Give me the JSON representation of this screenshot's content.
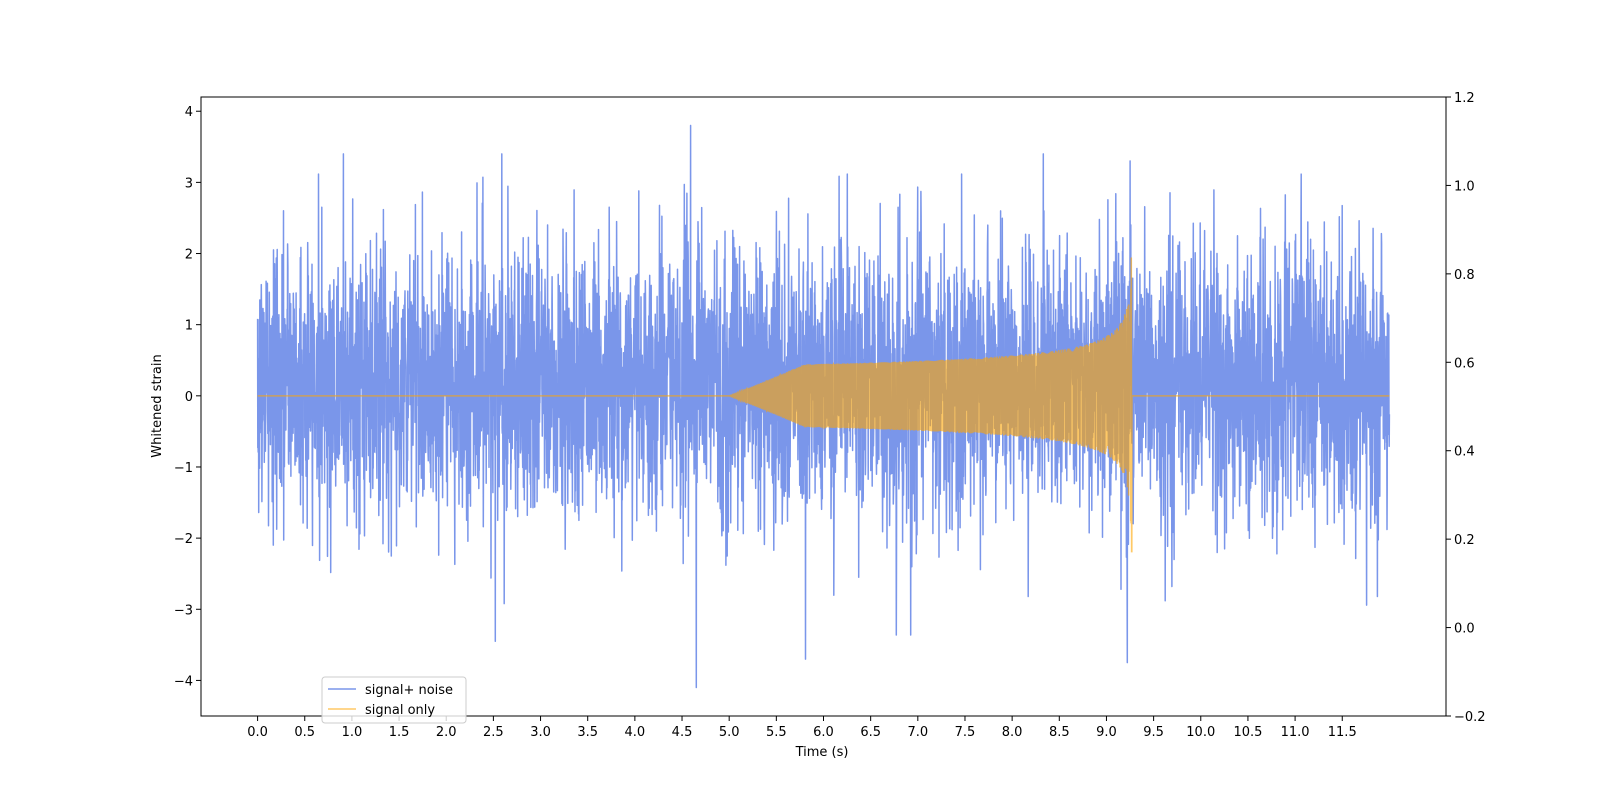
{
  "chart_data": {
    "type": "line",
    "title": "",
    "xlabel": "Time (s)",
    "ylabel": "Whitened strain",
    "x_range": [
      0,
      12
    ],
    "xlim": [
      -0.6,
      12.6
    ],
    "ylim": [
      -4.5,
      4.2
    ],
    "y2lim": [
      -0.2,
      1.2
    ],
    "x_ticks": [
      "0.0",
      "0.5",
      "1.0",
      "1.5",
      "2.0",
      "2.5",
      "3.0",
      "3.5",
      "4.0",
      "4.5",
      "5.0",
      "5.5",
      "6.0",
      "6.5",
      "7.0",
      "7.5",
      "8.0",
      "8.5",
      "9.0",
      "9.5",
      "10.0",
      "10.5",
      "11.0",
      "11.5"
    ],
    "y_ticks": [
      "4",
      "3",
      "2",
      "1",
      "0",
      "−1",
      "−2",
      "−3",
      "−4"
    ],
    "y2_ticks": [
      "1.2",
      "1.0",
      "0.8",
      "0.6",
      "0.4",
      "0.2",
      "0.0",
      "−0.2"
    ],
    "grid": false,
    "legend_position": "lower-left",
    "series": [
      {
        "name": "signal+ noise",
        "color": "#4169e1",
        "opacity": 0.7,
        "kind": "white-noise-plus-chirp",
        "noise_band": [
          -1.7,
          2.1
        ],
        "noise_extremes": [
          -4.1,
          3.8
        ],
        "peak_points": [
          {
            "x": 4.59,
            "y": 3.8
          },
          {
            "x": 4.65,
            "y": -4.1
          },
          {
            "x": 2.52,
            "y": -3.45
          },
          {
            "x": 5.81,
            "y": -3.7
          },
          {
            "x": 9.22,
            "y": -3.75
          },
          {
            "x": 9.25,
            "y": 3.3
          },
          {
            "x": 8.33,
            "y": 3.4
          },
          {
            "x": 2.59,
            "y": 3.4
          },
          {
            "x": 0.91,
            "y": 3.4
          }
        ]
      },
      {
        "name": "signal only",
        "color": "#ffa500",
        "opacity": 0.6,
        "kind": "chirp",
        "merger_time": 9.27,
        "peak_amplitude": 2.4,
        "start_time": 5.0
      }
    ]
  }
}
